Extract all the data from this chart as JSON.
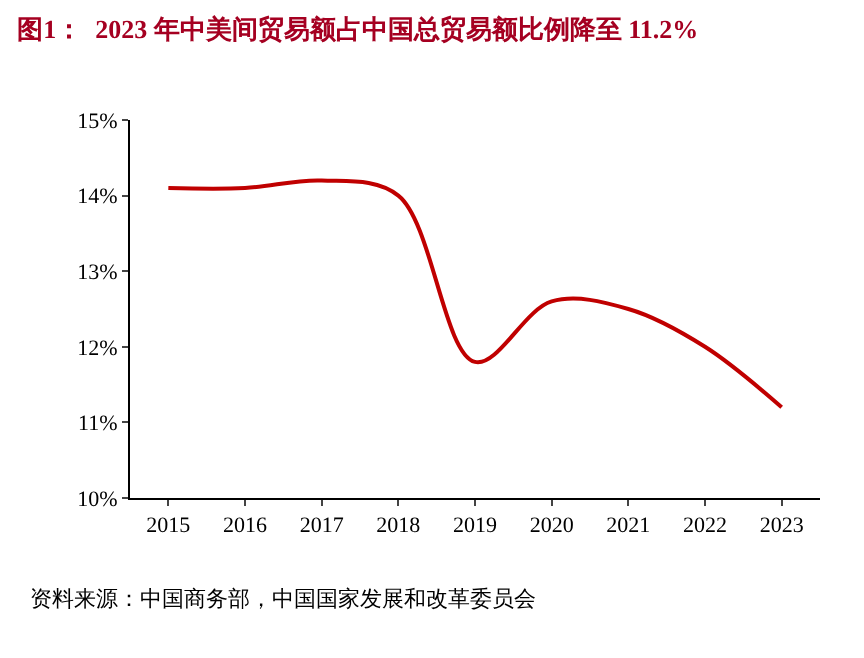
{
  "chart_data": {
    "type": "line",
    "title": "图1：  2023 年中美间贸易额占中国总贸易额比例降至 11.2%",
    "categories": [
      "2015",
      "2016",
      "2017",
      "2018",
      "2019",
      "2020",
      "2021",
      "2022",
      "2023"
    ],
    "series": [
      {
        "color": "#c00000",
        "values": [
          14.1,
          14.1,
          14.2,
          14.0,
          11.8,
          12.6,
          12.5,
          12.0,
          11.2
        ]
      }
    ],
    "ylim": [
      10,
      15
    ],
    "yticks": [
      {
        "value": 10,
        "label": "10%"
      },
      {
        "value": 11,
        "label": "11%"
      },
      {
        "value": 12,
        "label": "12%"
      },
      {
        "value": 13,
        "label": "13%"
      },
      {
        "value": 14,
        "label": "14%"
      },
      {
        "value": 15,
        "label": "15%"
      }
    ],
    "legend": false,
    "marker": "none",
    "line_style": "solid",
    "annotations": [
      "资料来源：中国商务部，中国国家发展和改革委员会"
    ]
  }
}
